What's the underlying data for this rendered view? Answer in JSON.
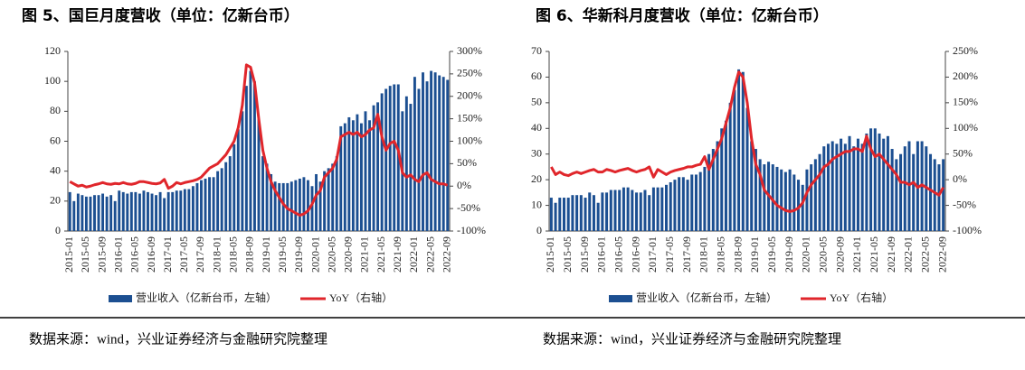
{
  "chart_data": [
    {
      "type": "bar_line",
      "title": "图 5、国巨月度营收（单位：亿新台币）",
      "source": "数据来源：wind，兴业证券经济与金融研究院整理",
      "categories": [
        "2015-01",
        null,
        null,
        null,
        "2015-05",
        null,
        null,
        null,
        "2015-09",
        null,
        null,
        null,
        "2016-01",
        null,
        null,
        null,
        "2016-05",
        null,
        null,
        null,
        "2016-09",
        null,
        null,
        null,
        "2017-01",
        null,
        null,
        null,
        "2017-05",
        null,
        null,
        null,
        "2017-09",
        null,
        null,
        null,
        "2018-01",
        null,
        null,
        null,
        "2018-05",
        null,
        null,
        null,
        "2018-09",
        null,
        null,
        null,
        "2019-01",
        null,
        null,
        null,
        "2019-05",
        null,
        null,
        null,
        "2019-09",
        null,
        null,
        null,
        "2020-01",
        null,
        null,
        null,
        "2020-05",
        null,
        null,
        null,
        "2020-09",
        null,
        null,
        null,
        "2021-01",
        null,
        null,
        null,
        "2021-05",
        null,
        null,
        null,
        "2021-09",
        null,
        null,
        null,
        "2022-01",
        null,
        null,
        null,
        "2022-05",
        null,
        null,
        null,
        "2022-09"
      ],
      "series": [
        {
          "name": "营业收入（亿新台币，左轴）",
          "color": "#1c4f91",
          "kind": "bar",
          "values": [
            26,
            20,
            25,
            24,
            23,
            23,
            24,
            24,
            25,
            23,
            24,
            20,
            27,
            26,
            25,
            26,
            26,
            25,
            27,
            26,
            25,
            24,
            26,
            22,
            26,
            26,
            27,
            27,
            28,
            28,
            30,
            32,
            34,
            35,
            36,
            36,
            40,
            42,
            46,
            50,
            58,
            68,
            80,
            97,
            107,
            100,
            75,
            50,
            45,
            38,
            33,
            32,
            32,
            32,
            33,
            34,
            35,
            36,
            34,
            30,
            38,
            33,
            40,
            42,
            45,
            50,
            70,
            72,
            76,
            74,
            78,
            72,
            80,
            74,
            84,
            86,
            92,
            95,
            97,
            98,
            98,
            80,
            90,
            85,
            103,
            95,
            106,
            100,
            107,
            106,
            104,
            103,
            101
          ]
        },
        {
          "name": "YoY（右轴）",
          "color": "#e0262b",
          "kind": "line",
          "axis": "y2",
          "values": [
            10,
            5,
            0,
            2,
            -2,
            0,
            3,
            5,
            8,
            5,
            4,
            6,
            5,
            8,
            5,
            4,
            6,
            10,
            10,
            8,
            6,
            5,
            7,
            15,
            -5,
            0,
            8,
            5,
            8,
            10,
            12,
            15,
            20,
            30,
            40,
            45,
            50,
            60,
            70,
            85,
            100,
            130,
            180,
            270,
            265,
            230,
            150,
            80,
            40,
            10,
            -10,
            -25,
            -40,
            -50,
            -55,
            -60,
            -65,
            -62,
            -55,
            -40,
            -20,
            -10,
            20,
            30,
            40,
            60,
            110,
            115,
            120,
            115,
            120,
            110,
            115,
            125,
            130,
            160,
            110,
            80,
            95,
            100,
            80,
            30,
            20,
            25,
            15,
            10,
            25,
            30,
            15,
            10,
            5,
            5,
            2
          ]
        }
      ],
      "ylim": [
        0,
        120
      ],
      "yticks": [
        0,
        20,
        40,
        60,
        80,
        100,
        120
      ],
      "y2lim": [
        -100,
        300
      ],
      "y2ticks": [
        {
          "value": -100,
          "label": "-100%"
        },
        {
          "value": -50,
          "label": "-50%"
        },
        {
          "value": 0,
          "label": "0%"
        },
        {
          "value": 50,
          "label": "50%"
        },
        {
          "value": 100,
          "label": "100%"
        },
        {
          "value": 150,
          "label": "150%"
        },
        {
          "value": 200,
          "label": "200%"
        },
        {
          "value": 250,
          "label": "250%"
        },
        {
          "value": 300,
          "label": "300%"
        }
      ]
    },
    {
      "type": "bar_line",
      "title": "图 6、华新科月度营收（单位：亿新台币）",
      "source": "数据来源：wind，兴业证券经济与金融研究院整理",
      "categories": [
        "2015-01",
        null,
        null,
        null,
        "2015-05",
        null,
        null,
        null,
        "2015-09",
        null,
        null,
        null,
        "2016-01",
        null,
        null,
        null,
        "2016-05",
        null,
        null,
        null,
        "2016-09",
        null,
        null,
        null,
        "2017-01",
        null,
        null,
        null,
        "2017-05",
        null,
        null,
        null,
        "2017-09",
        null,
        null,
        null,
        "2018-01",
        null,
        null,
        null,
        "2018-05",
        null,
        null,
        null,
        "2018-09",
        null,
        null,
        null,
        "2019-01",
        null,
        null,
        null,
        "2019-05",
        null,
        null,
        null,
        "2019-09",
        null,
        null,
        null,
        "2020-01",
        null,
        null,
        null,
        "2020-05",
        null,
        null,
        null,
        "2020-09",
        null,
        null,
        null,
        "2021-01",
        null,
        null,
        null,
        "2021-05",
        null,
        null,
        null,
        "2021-09",
        null,
        null,
        null,
        "2022-01",
        null,
        null,
        null,
        "2022-05",
        null,
        null,
        null,
        "2022-09"
      ],
      "series": [
        {
          "name": "营业收入（亿新台币，左轴）",
          "color": "#1c4f91",
          "kind": "bar",
          "values": [
            13,
            11,
            13,
            13,
            13,
            14,
            14,
            14,
            13,
            15,
            14,
            11,
            15,
            15,
            16,
            16,
            16,
            17,
            17,
            16,
            15,
            15,
            16,
            14,
            17,
            17,
            17,
            18,
            19,
            20,
            21,
            21,
            20,
            22,
            22,
            23,
            25,
            30,
            32,
            35,
            40,
            43,
            50,
            55,
            63,
            62,
            48,
            35,
            32,
            28,
            26,
            27,
            26,
            25,
            24,
            23,
            24,
            22,
            20,
            18,
            24,
            26,
            28,
            30,
            33,
            34,
            35,
            34,
            36,
            34,
            37,
            33,
            36,
            34,
            38,
            40,
            40,
            38,
            36,
            37,
            32,
            28,
            30,
            33,
            35,
            30,
            35,
            35,
            33,
            30,
            28,
            26,
            28
          ]
        },
        {
          "name": "YoY（右轴）",
          "color": "#e0262b",
          "kind": "line",
          "axis": "y2",
          "values": [
            25,
            10,
            15,
            10,
            8,
            12,
            15,
            12,
            15,
            18,
            20,
            15,
            15,
            20,
            18,
            15,
            18,
            20,
            22,
            18,
            15,
            18,
            20,
            25,
            5,
            20,
            15,
            10,
            15,
            18,
            20,
            22,
            25,
            25,
            28,
            30,
            45,
            20,
            40,
            60,
            80,
            110,
            140,
            180,
            210,
            200,
            150,
            80,
            30,
            10,
            -20,
            -30,
            -40,
            -50,
            -55,
            -60,
            -62,
            -60,
            -55,
            -45,
            -25,
            -10,
            0,
            10,
            25,
            30,
            40,
            45,
            50,
            55,
            55,
            60,
            60,
            55,
            85,
            60,
            45,
            50,
            40,
            30,
            20,
            10,
            -5,
            -5,
            -10,
            -5,
            -15,
            -10,
            -15,
            -20,
            -25,
            -30,
            -15
          ]
        }
      ],
      "ylim": [
        0,
        70
      ],
      "yticks": [
        0,
        10,
        20,
        30,
        40,
        50,
        60,
        70
      ],
      "y2lim": [
        -100,
        250
      ],
      "y2ticks": [
        {
          "value": -100,
          "label": "-100%"
        },
        {
          "value": -50,
          "label": "-50%"
        },
        {
          "value": 0,
          "label": "0%"
        },
        {
          "value": 50,
          "label": "50%"
        },
        {
          "value": 100,
          "label": "100%"
        },
        {
          "value": 150,
          "label": "150%"
        },
        {
          "value": 200,
          "label": "200%"
        },
        {
          "value": 250,
          "label": "250%"
        }
      ]
    }
  ]
}
